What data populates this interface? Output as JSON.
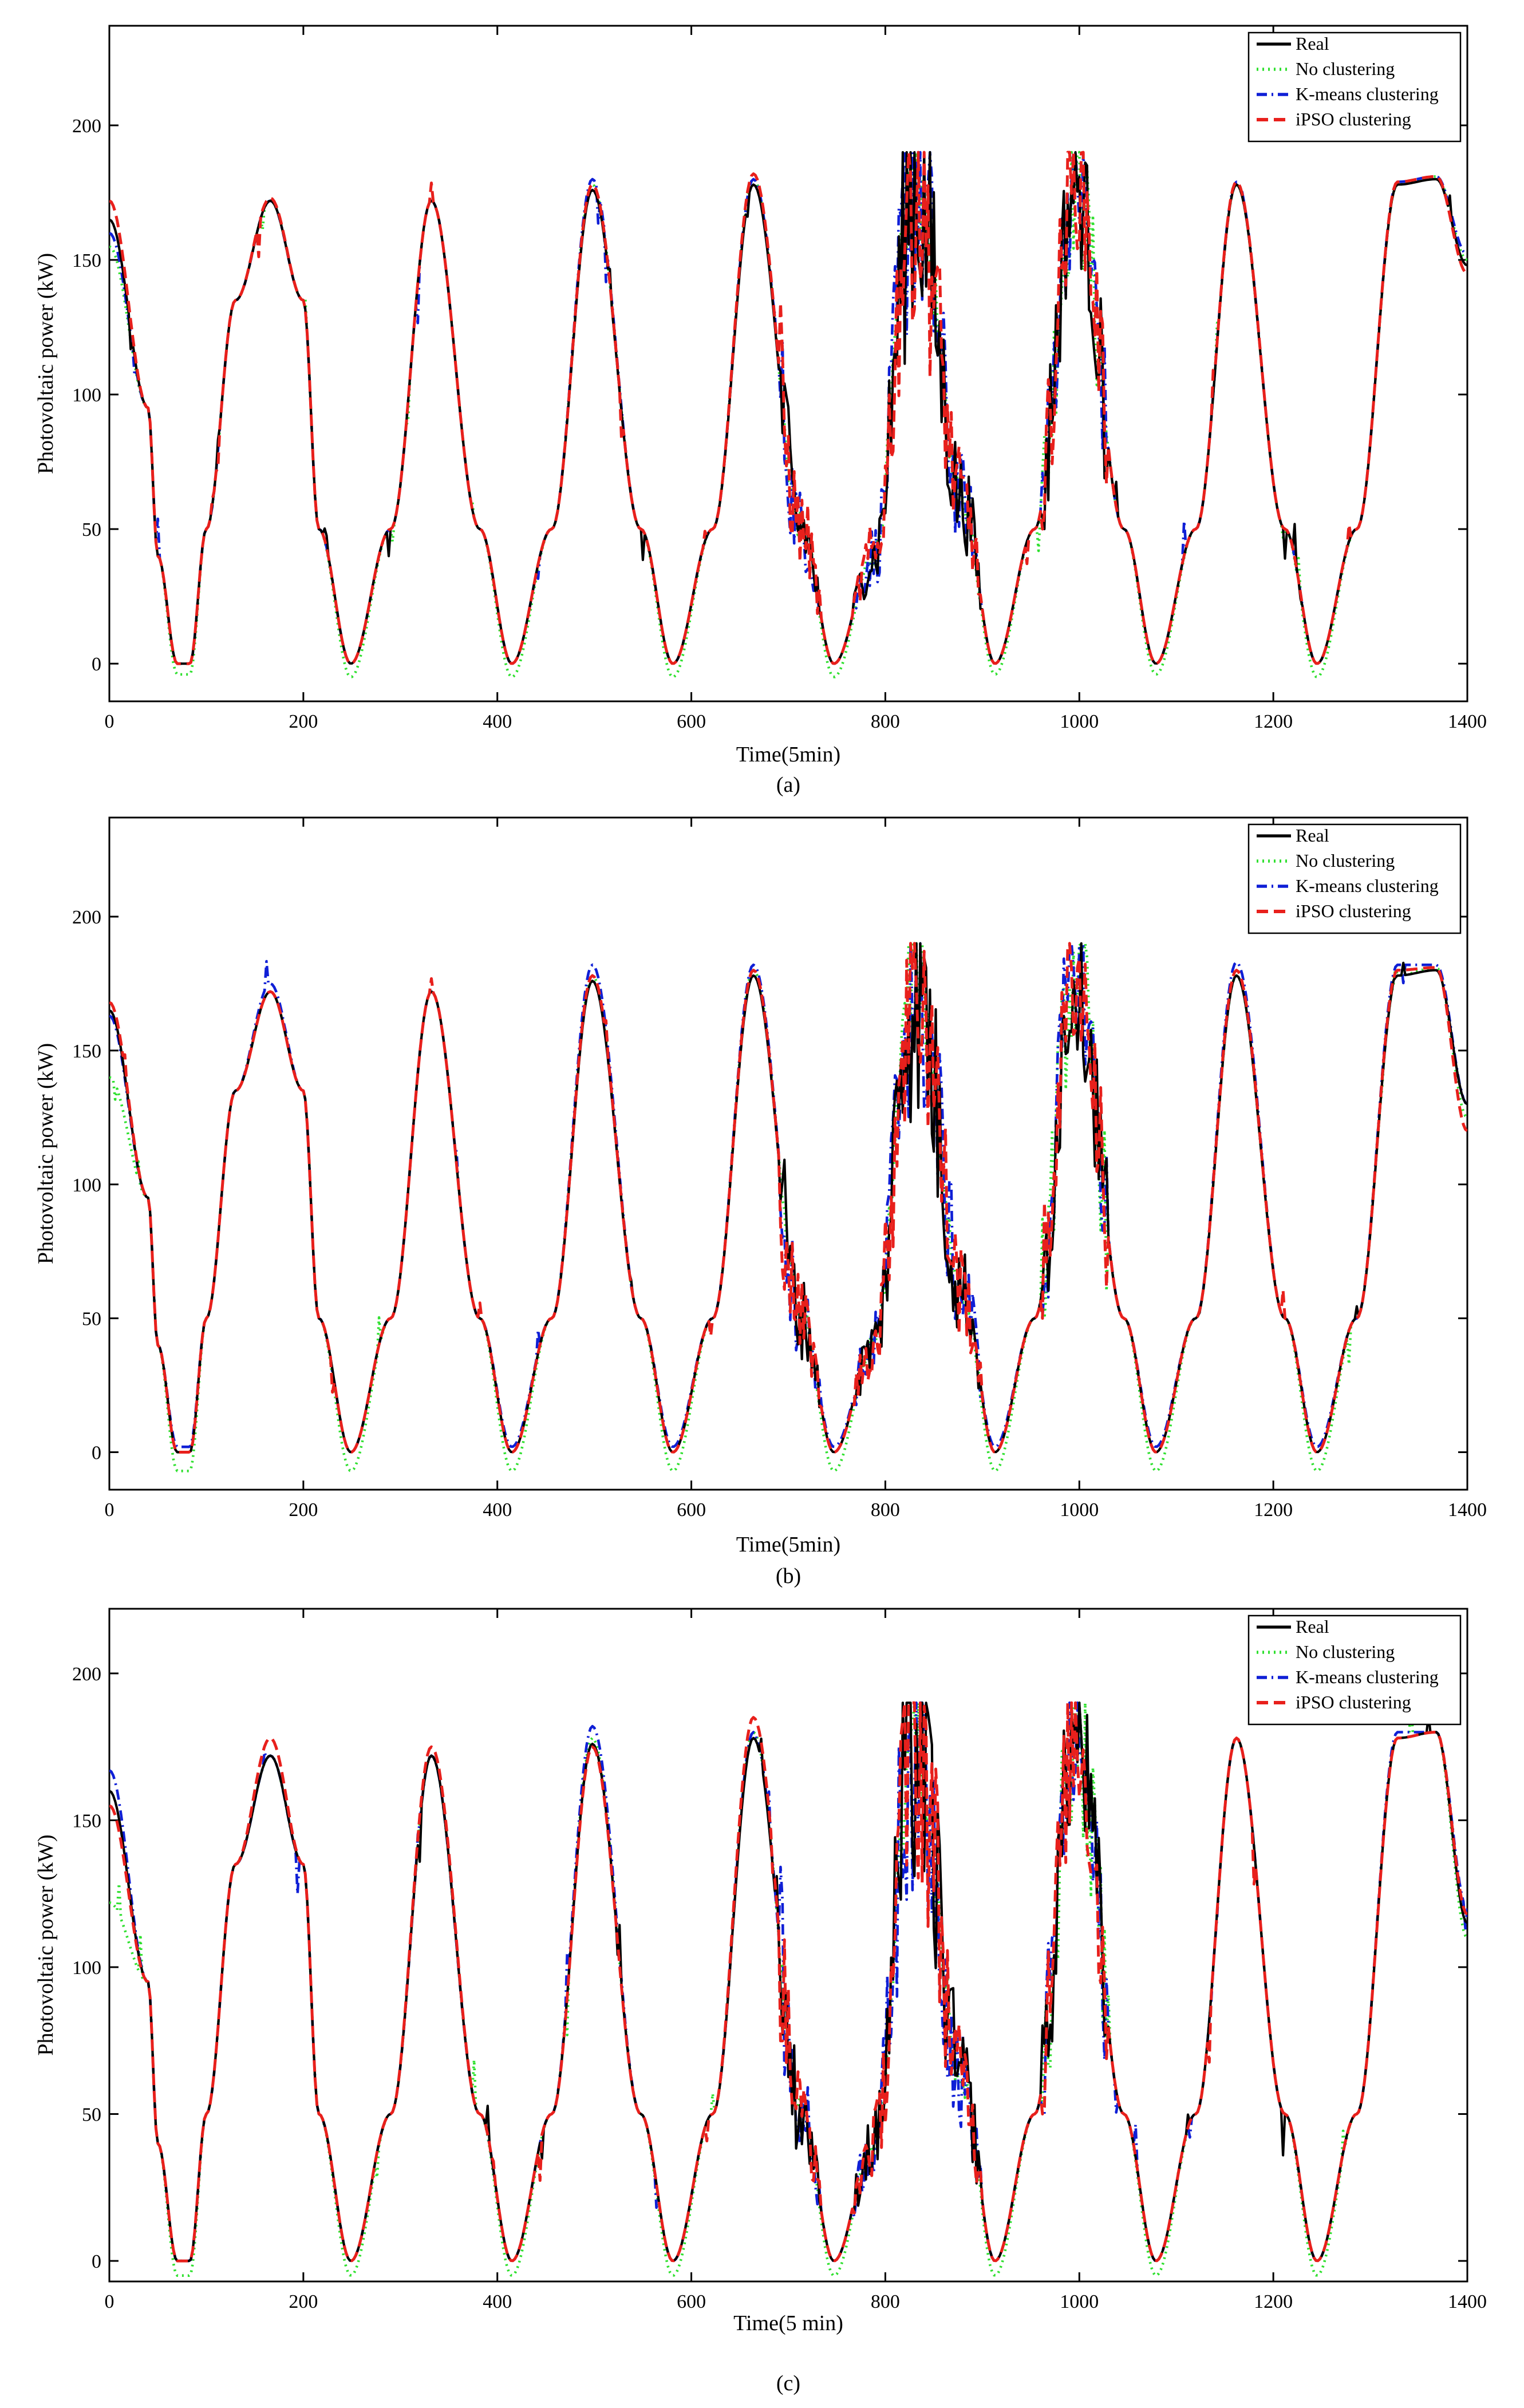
{
  "figure": {
    "panels": [
      {
        "caption": "(a)"
      },
      {
        "caption": "(b)"
      },
      {
        "caption": "(c)"
      }
    ]
  },
  "legend": [
    {
      "label": "Real",
      "color": "#000000",
      "dash": "solid"
    },
    {
      "label": "No clustering",
      "color": "#2fe02f",
      "dash": "dot"
    },
    {
      "label": "K-means clustering",
      "color": "#0f1fd6",
      "dash": "dashdot"
    },
    {
      "label": "iPSO clustering",
      "color": "#e8201c",
      "dash": "dash"
    }
  ],
  "chart_data": [
    {
      "type": "line",
      "title": "",
      "caption": "(a)",
      "xlabel": "Time(5min)",
      "ylabel": "Photovoltaic power (kW)",
      "xlim": [
        0,
        1400
      ],
      "ylim": [
        -14,
        237
      ],
      "xticks": [
        0,
        200,
        400,
        600,
        800,
        1000,
        1200,
        1400
      ],
      "yticks": [
        0,
        50,
        100,
        150,
        200
      ],
      "legend_position": "top-right",
      "day_period": 166,
      "x": [
        0,
        40,
        50,
        70,
        83,
        100,
        130,
        166,
        200,
        216,
        249,
        290,
        332,
        382,
        415,
        456,
        498,
        548,
        581,
        622,
        664,
        714,
        747,
        788,
        830,
        880,
        913,
        954,
        996,
        1046,
        1079,
        1120,
        1162,
        1212,
        1245,
        1286,
        1328,
        1368,
        1400
      ],
      "series": [
        {
          "name": "Real",
          "values": [
            165,
            95,
            40,
            0,
            0,
            50,
            135,
            172,
            135,
            50,
            0,
            50,
            172,
            50,
            0,
            50,
            176,
            50,
            0,
            50,
            178,
            50,
            0,
            40,
            178,
            60,
            0,
            50,
            178,
            50,
            0,
            50,
            178,
            50,
            0,
            50,
            178,
            180,
            148
          ]
        },
        {
          "name": "No clustering",
          "values": [
            155,
            95,
            40,
            -4,
            -4,
            50,
            135,
            172,
            135,
            50,
            -5,
            50,
            172,
            50,
            -5,
            50,
            178,
            50,
            -5,
            50,
            180,
            50,
            -5,
            40,
            180,
            60,
            -4,
            50,
            178,
            50,
            -4,
            50,
            178,
            50,
            -5,
            50,
            178,
            181,
            150
          ]
        },
        {
          "name": "K-means clustering",
          "values": [
            160,
            95,
            40,
            0,
            0,
            50,
            135,
            172,
            135,
            50,
            0,
            50,
            172,
            50,
            0,
            50,
            180,
            50,
            0,
            50,
            180,
            50,
            0,
            40,
            180,
            60,
            0,
            50,
            180,
            50,
            0,
            50,
            179,
            50,
            0,
            50,
            179,
            181,
            152
          ]
        },
        {
          "name": "iPSO clustering",
          "values": [
            172,
            95,
            40,
            0,
            0,
            50,
            135,
            173,
            135,
            50,
            0,
            50,
            172,
            50,
            0,
            50,
            178,
            50,
            0,
            50,
            182,
            50,
            0,
            40,
            182,
            60,
            0,
            50,
            182,
            50,
            0,
            50,
            179,
            50,
            0,
            50,
            179,
            181,
            145
          ]
        }
      ]
    },
    {
      "type": "line",
      "title": "",
      "caption": "(b)",
      "xlabel": "Time(5min)",
      "ylabel": "Photovoltaic power (kW)",
      "xlim": [
        0,
        1400
      ],
      "ylim": [
        -14,
        237
      ],
      "xticks": [
        0,
        200,
        400,
        600,
        800,
        1000,
        1200,
        1400
      ],
      "yticks": [
        0,
        50,
        100,
        150,
        200
      ],
      "legend_position": "top-right",
      "day_period": 166,
      "x": [
        0,
        40,
        50,
        70,
        83,
        100,
        130,
        166,
        200,
        216,
        249,
        290,
        332,
        382,
        415,
        456,
        498,
        548,
        581,
        622,
        664,
        714,
        747,
        788,
        830,
        880,
        913,
        954,
        996,
        1046,
        1079,
        1120,
        1162,
        1212,
        1245,
        1286,
        1328,
        1368,
        1400
      ],
      "series": [
        {
          "name": "Real",
          "values": [
            165,
            95,
            40,
            0,
            0,
            50,
            135,
            172,
            135,
            50,
            0,
            50,
            172,
            50,
            0,
            50,
            176,
            50,
            0,
            50,
            178,
            50,
            0,
            40,
            178,
            60,
            0,
            50,
            178,
            50,
            0,
            50,
            178,
            50,
            0,
            50,
            178,
            180,
            130
          ]
        },
        {
          "name": "No clustering",
          "values": [
            140,
            95,
            40,
            -7,
            -7,
            50,
            135,
            172,
            135,
            50,
            -7,
            50,
            172,
            50,
            -7,
            50,
            178,
            50,
            -7,
            50,
            180,
            50,
            -7,
            40,
            180,
            60,
            -7,
            50,
            178,
            50,
            -7,
            50,
            178,
            50,
            -7,
            50,
            178,
            181,
            125
          ]
        },
        {
          "name": "K-means clustering",
          "values": [
            163,
            95,
            40,
            2,
            2,
            50,
            135,
            175,
            135,
            50,
            0,
            50,
            172,
            50,
            2,
            50,
            182,
            50,
            2,
            50,
            182,
            50,
            2,
            40,
            182,
            60,
            2,
            50,
            182,
            50,
            2,
            50,
            183,
            50,
            2,
            50,
            182,
            182,
            130
          ]
        },
        {
          "name": "iPSO clustering",
          "values": [
            168,
            95,
            40,
            0,
            0,
            50,
            135,
            172,
            135,
            50,
            0,
            50,
            172,
            50,
            0,
            50,
            178,
            50,
            0,
            50,
            180,
            50,
            0,
            40,
            185,
            60,
            0,
            50,
            180,
            50,
            0,
            50,
            180,
            50,
            0,
            50,
            180,
            181,
            120
          ]
        }
      ]
    },
    {
      "type": "line",
      "title": "",
      "caption": "(c)",
      "xlabel": "Time(5 min)",
      "ylabel": "Photovoltaic power (kW)",
      "xlim": [
        0,
        1400
      ],
      "ylim": [
        -7,
        222
      ],
      "xticks": [
        0,
        200,
        400,
        600,
        800,
        1000,
        1200,
        1400
      ],
      "yticks": [
        0,
        50,
        100,
        150,
        200
      ],
      "legend_position": "top-right",
      "day_period": 166,
      "x": [
        0,
        40,
        50,
        70,
        83,
        100,
        130,
        166,
        200,
        216,
        249,
        290,
        332,
        382,
        415,
        456,
        498,
        548,
        581,
        622,
        664,
        714,
        747,
        788,
        830,
        880,
        913,
        954,
        996,
        1046,
        1079,
        1120,
        1162,
        1212,
        1245,
        1286,
        1328,
        1368,
        1400
      ],
      "series": [
        {
          "name": "Real",
          "values": [
            160,
            95,
            40,
            0,
            0,
            50,
            135,
            172,
            135,
            50,
            0,
            50,
            172,
            50,
            0,
            50,
            176,
            50,
            0,
            50,
            178,
            50,
            0,
            40,
            178,
            60,
            0,
            50,
            178,
            50,
            0,
            50,
            178,
            50,
            0,
            50,
            178,
            180,
            115
          ]
        },
        {
          "name": "No clustering",
          "values": [
            122,
            95,
            40,
            -5,
            -5,
            50,
            135,
            172,
            135,
            50,
            -5,
            50,
            172,
            50,
            -5,
            50,
            178,
            50,
            -5,
            50,
            180,
            50,
            -5,
            40,
            180,
            60,
            -5,
            50,
            178,
            50,
            -5,
            50,
            178,
            50,
            -5,
            50,
            178,
            180,
            110
          ]
        },
        {
          "name": "K-means clustering",
          "values": [
            167,
            95,
            40,
            0,
            0,
            50,
            135,
            172,
            135,
            50,
            0,
            50,
            172,
            50,
            0,
            50,
            182,
            50,
            0,
            50,
            180,
            50,
            0,
            40,
            182,
            60,
            0,
            50,
            176,
            50,
            0,
            50,
            178,
            50,
            0,
            50,
            180,
            180,
            120
          ]
        },
        {
          "name": "iPSO clustering",
          "values": [
            155,
            95,
            40,
            0,
            0,
            50,
            135,
            178,
            135,
            50,
            0,
            50,
            175,
            50,
            0,
            50,
            175,
            50,
            0,
            50,
            185,
            50,
            0,
            40,
            182,
            60,
            0,
            50,
            178,
            50,
            0,
            50,
            178,
            50,
            0,
            50,
            178,
            180,
            118
          ]
        }
      ]
    }
  ]
}
